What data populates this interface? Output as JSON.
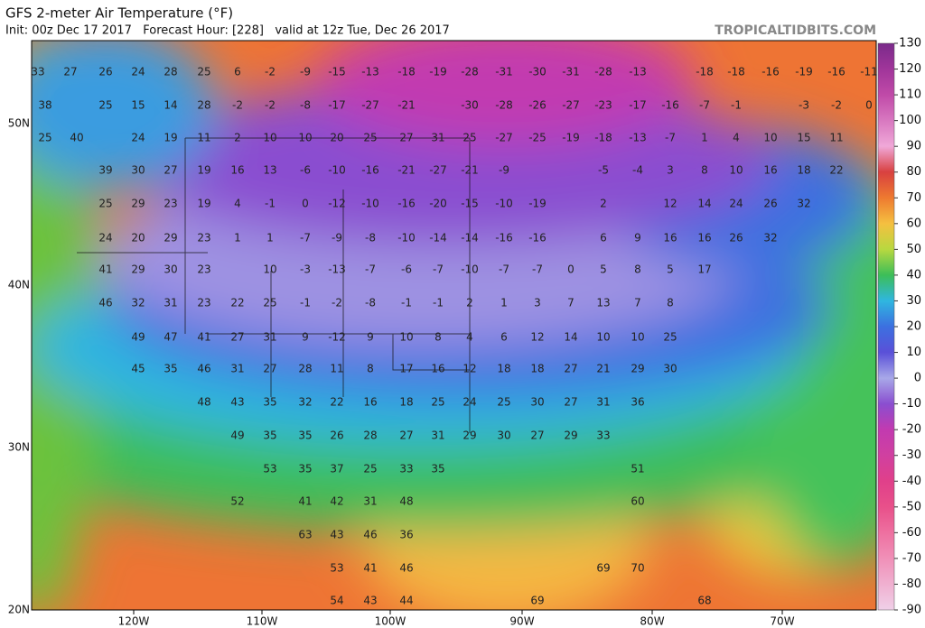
{
  "header": {
    "title": "GFS 2-meter Air Temperature (°F)",
    "subtitle": "Init: 00z Dec 17 2017   Forecast Hour: [228]   valid at 12z Tue, Dec 26 2017",
    "source": "TROPICALTIDBITS.COM"
  },
  "map": {
    "latitude_labels": [
      "50N",
      "40N",
      "30N",
      "20N"
    ],
    "longitude_labels": [
      "120W",
      "110W",
      "100W",
      "90W",
      "80W",
      "70W"
    ],
    "temperature_rows": [
      [
        33,
        27,
        26,
        24,
        28,
        25,
        6,
        -2,
        -9,
        -15,
        -13,
        -18,
        -19,
        -28,
        -31,
        -30,
        -31,
        -28,
        -13,
        -18,
        -18,
        -16,
        -19,
        -16,
        -11
      ],
      [
        38,
        25,
        15,
        14,
        28,
        -2,
        -2,
        -8,
        -17,
        -27,
        -21,
        -30,
        -28,
        -26,
        -27,
        -23,
        -17,
        -16,
        -7,
        -1,
        -3,
        -2,
        0
      ],
      [
        25,
        40,
        24,
        19,
        11,
        2,
        10,
        10,
        20,
        25,
        27,
        31,
        25,
        -27,
        -25,
        -19,
        -18,
        -13,
        -7,
        1,
        4,
        10,
        15,
        11
      ],
      [
        39,
        30,
        27,
        19,
        16,
        13,
        -6,
        -10,
        -16,
        -21,
        -27,
        -21,
        -9,
        -5,
        -4,
        3,
        8,
        10,
        16,
        18,
        22
      ],
      [
        25,
        29,
        23,
        19,
        4,
        -1,
        0,
        -12,
        -10,
        -16,
        -20,
        -15,
        -10,
        -19,
        2,
        12,
        14,
        24,
        26,
        32
      ],
      [
        24,
        20,
        29,
        23,
        1,
        1,
        -7,
        -9,
        -8,
        -10,
        -14,
        -14,
        -16,
        -16,
        6,
        9,
        16,
        16,
        26,
        32
      ],
      [
        41,
        29,
        30,
        23,
        10,
        -3,
        -13,
        -7,
        -6,
        -7,
        -10,
        -7,
        -7,
        0,
        5,
        8,
        5,
        17
      ],
      [
        46,
        32,
        31,
        23,
        22,
        25,
        -1,
        -2,
        -8,
        -1,
        -1,
        2,
        1,
        3,
        7,
        13,
        7,
        8
      ],
      [
        49,
        47,
        41,
        27,
        31,
        9,
        -12,
        9,
        10,
        8,
        4,
        6,
        12,
        14,
        10,
        10,
        25
      ],
      [
        45,
        35,
        46,
        31,
        27,
        28,
        11,
        8,
        17,
        16,
        12,
        18,
        18,
        27,
        21,
        29,
        30
      ],
      [
        48,
        43,
        35,
        32,
        22,
        16,
        18,
        25,
        24,
        25,
        30,
        27,
        31,
        36
      ],
      [
        49,
        35,
        35,
        26,
        28,
        27,
        31,
        29,
        30,
        27,
        29,
        33
      ],
      [
        53,
        35,
        37,
        25,
        33,
        35,
        51
      ],
      [
        52,
        41,
        42,
        31,
        48,
        60
      ],
      [
        63,
        43,
        46,
        36
      ],
      [
        53,
        41,
        46,
        69,
        70
      ],
      [
        54,
        43,
        44,
        69,
        68
      ]
    ]
  },
  "colorbar": {
    "ticks": [
      130,
      120,
      110,
      100,
      90,
      80,
      70,
      60,
      50,
      40,
      30,
      20,
      10,
      0,
      -10,
      -20,
      -30,
      -40,
      -50,
      -60,
      -70,
      -80,
      -90
    ]
  }
}
